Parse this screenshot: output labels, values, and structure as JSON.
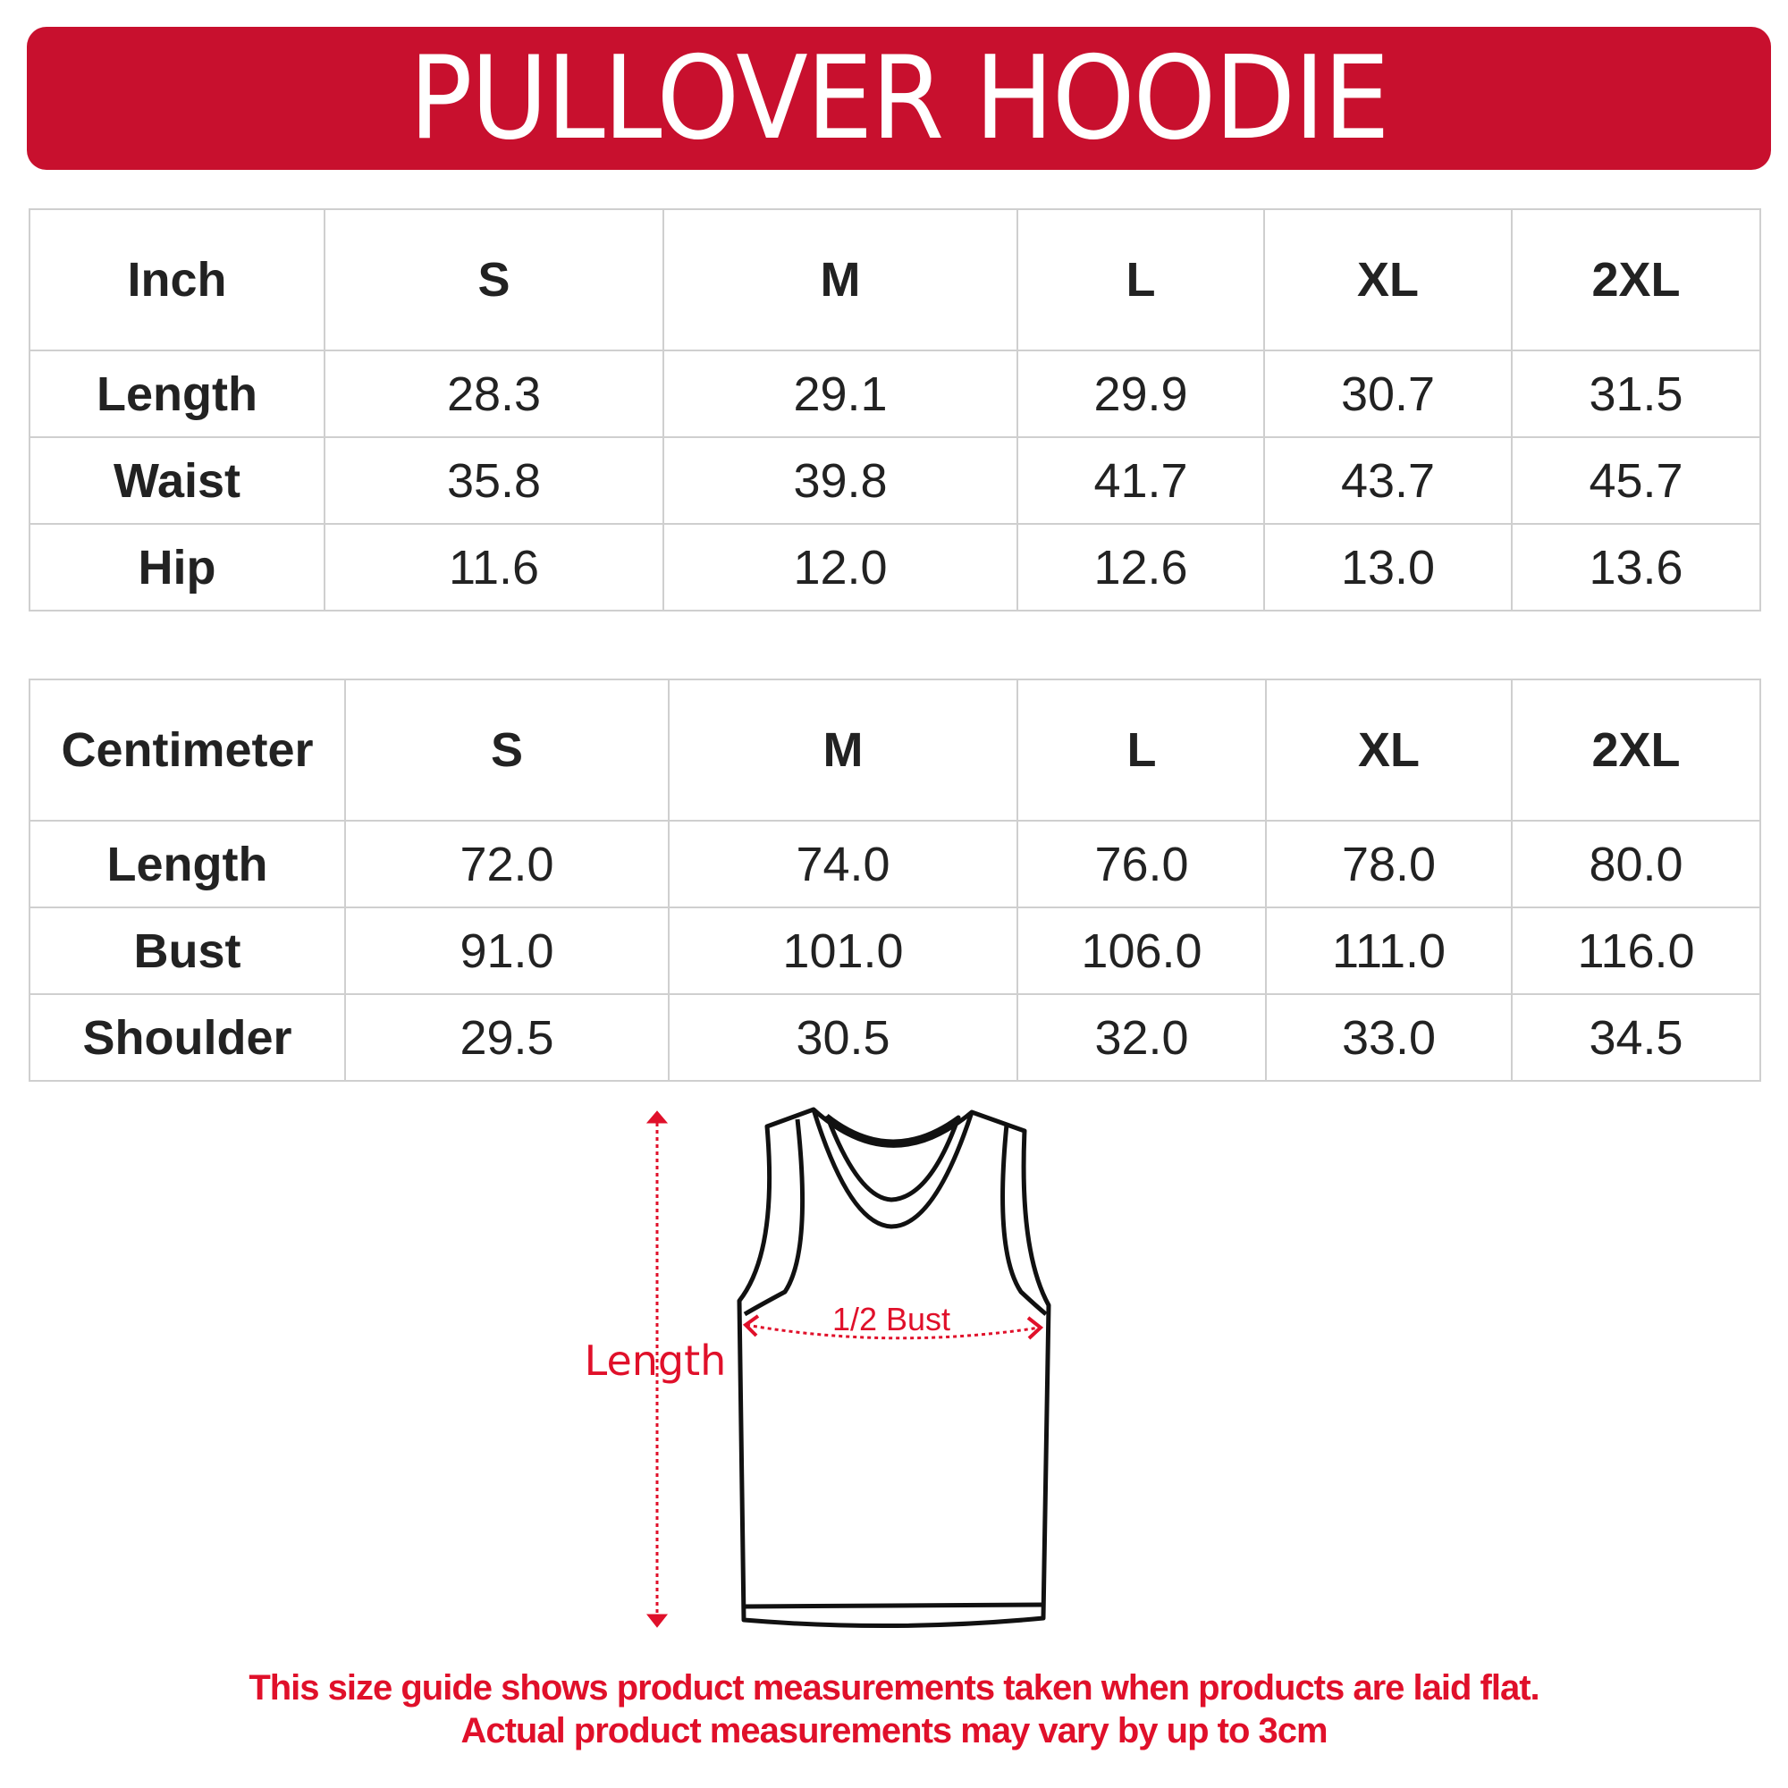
{
  "title": "PULLOVER HOODIE",
  "sizes": [
    "S",
    "M",
    "L",
    "XL",
    "2XL"
  ],
  "inch_table": {
    "unit": "Inch",
    "rows": [
      {
        "label": "Length",
        "values": [
          "28.3",
          "29.1",
          "29.9",
          "30.7",
          "31.5"
        ]
      },
      {
        "label": "Waist",
        "values": [
          "35.8",
          "39.8",
          "41.7",
          "43.7",
          "45.7"
        ]
      },
      {
        "label": "Hip",
        "values": [
          "11.6",
          "12.0",
          "12.6",
          "13.0",
          "13.6"
        ]
      }
    ]
  },
  "cm_table": {
    "unit": "Centimeter",
    "rows": [
      {
        "label": "Length",
        "values": [
          "72.0",
          "74.0",
          "76.0",
          "78.0",
          "80.0"
        ]
      },
      {
        "label": "Bust",
        "values": [
          "91.0",
          "101.0",
          "106.0",
          "111.0",
          "116.0"
        ]
      },
      {
        "label": "Shoulder",
        "values": [
          "29.5",
          "30.5",
          "32.0",
          "33.0",
          "34.5"
        ]
      }
    ]
  },
  "diagram": {
    "length_label": "Length",
    "bust_label": "1/2 Bust"
  },
  "footer": {
    "line1": "This size guide shows product measurements taken when products are laid flat.",
    "line2": "Actual product measurements may vary by up to 3cm"
  },
  "colors": {
    "banner": "#c8102e",
    "accent_red": "#e0102a"
  }
}
